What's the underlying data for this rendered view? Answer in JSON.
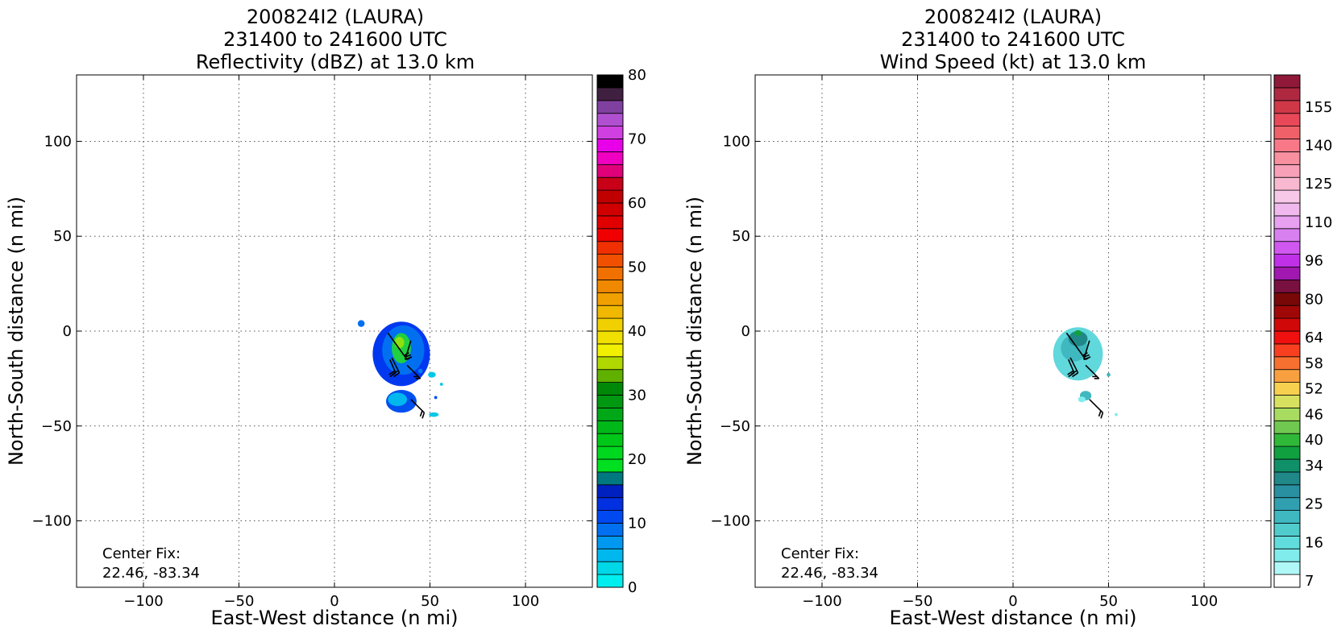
{
  "chart_data": [
    {
      "type": "heatmap",
      "title": [
        "200824I2 (LAURA)",
        "231400 to 241600 UTC",
        "Reflectivity (dBZ) at 13.0 km"
      ],
      "xlabel": "East-West distance (n mi)",
      "ylabel": "North-South distance (n mi)",
      "xlim": [
        -135,
        135
      ],
      "ylim": [
        -135,
        135
      ],
      "xticks": [
        -100,
        -50,
        0,
        50,
        100
      ],
      "yticks": [
        -100,
        -50,
        0,
        50,
        100
      ],
      "xtick_labels": [
        "−100",
        "−50",
        "0",
        "50",
        "100"
      ],
      "ytick_labels": [
        "−100",
        "−50",
        "0",
        "50",
        "100"
      ],
      "grid": true,
      "annotation": [
        "Center Fix:",
        "22.46, -83.34"
      ],
      "colorbar": {
        "min": 0,
        "max": 80,
        "ticks": [
          0,
          10,
          20,
          30,
          40,
          50,
          60,
          70,
          80
        ],
        "colors": [
          "#00eeee",
          "#00d8e8",
          "#00b8ee",
          "#0098f0",
          "#0070f0",
          "#0048f0",
          "#0030e0",
          "#0020c0",
          "#007880",
          "#00e020",
          "#00d820",
          "#00c818",
          "#00b818",
          "#00a818",
          "#009810",
          "#008808",
          "#60b000",
          "#b0d800",
          "#f0f000",
          "#f0e000",
          "#f0d000",
          "#f0b800",
          "#f0a000",
          "#f08800",
          "#f07000",
          "#f05000",
          "#f03000",
          "#f00000",
          "#e00000",
          "#d00000",
          "#c00000",
          "#c80018",
          "#e0007a",
          "#f000c0",
          "#e800e8",
          "#d040e0",
          "#b050d0",
          "#8040a0",
          "#402040",
          "#000000"
        ]
      },
      "features": [
        {
          "cx": 35,
          "cy": -12,
          "rx": 15,
          "ry": 17,
          "color": "#0038f0"
        },
        {
          "cx": 36,
          "cy": -10,
          "rx": 11,
          "ry": 13,
          "color": "#0070f0"
        },
        {
          "cx": 35,
          "cy": -9,
          "rx": 5,
          "ry": 8,
          "color": "#20d040"
        },
        {
          "cx": 34,
          "cy": -6,
          "rx": 2.5,
          "ry": 3,
          "color": "#90e010"
        },
        {
          "cx": 35,
          "cy": -37,
          "rx": 8,
          "ry": 6,
          "color": "#0050f0"
        },
        {
          "cx": 33,
          "cy": -36,
          "rx": 5,
          "ry": 3.5,
          "color": "#00b8ee"
        },
        {
          "cx": 14,
          "cy": 4,
          "rx": 1.8,
          "ry": 1.8,
          "color": "#0070f0"
        },
        {
          "cx": 52,
          "cy": -44,
          "rx": 2.5,
          "ry": 1.2,
          "color": "#00c8e8"
        },
        {
          "cx": 51,
          "cy": -23,
          "rx": 2,
          "ry": 1.5,
          "color": "#00c8e8"
        },
        {
          "cx": 56,
          "cy": -28,
          "rx": 0.8,
          "ry": 0.8,
          "color": "#00c8e8"
        },
        {
          "cx": 45,
          "cy": -21,
          "rx": 1.2,
          "ry": 1.2,
          "color": "#0080f0"
        },
        {
          "cx": 53,
          "cy": -35,
          "rx": 0.8,
          "ry": 0.8,
          "color": "#0050f0"
        }
      ],
      "barbs": [
        {
          "x0": 28,
          "y0": -1,
          "x1": 38,
          "y1": -15,
          "dx": 2.5,
          "dy": 1.5
        },
        {
          "x0": 40,
          "y0": -5,
          "x1": 37,
          "y1": -15,
          "dx": 2.5,
          "dy": 1
        },
        {
          "x0": 38,
          "y0": -18,
          "x1": 45,
          "y1": -25,
          "dx": -2.5,
          "dy": 0
        },
        {
          "x0": 30,
          "y0": -14,
          "x1": 34,
          "y1": -22,
          "dx": -3,
          "dy": -2
        },
        {
          "x0": 29,
          "y0": -15,
          "x1": 32,
          "y1": -22,
          "dx": -3,
          "dy": -2
        },
        {
          "x0": 40,
          "y0": -36,
          "x1": 47,
          "y1": -43,
          "dx": -1,
          "dy": -3
        }
      ]
    },
    {
      "type": "heatmap",
      "title": [
        "200824I2 (LAURA)",
        "231400 to 241600 UTC",
        "Wind Speed (kt) at 13.0 km"
      ],
      "xlabel": "East-West distance (n mi)",
      "ylabel": "North-South distance (n mi)",
      "xlim": [
        -135,
        135
      ],
      "ylim": [
        -135,
        135
      ],
      "xticks": [
        -100,
        -50,
        0,
        50,
        100
      ],
      "yticks": [
        -100,
        -50,
        0,
        50,
        100
      ],
      "xtick_labels": [
        "−100",
        "−50",
        "0",
        "50",
        "100"
      ],
      "ytick_labels": [
        "−100",
        "−50",
        "0",
        "50",
        "100"
      ],
      "grid": true,
      "annotation": [
        "Center Fix:",
        "22.46, -83.34"
      ],
      "colorbar": {
        "tick_labels": [
          "7",
          "16",
          "25",
          "34",
          "40",
          "46",
          "52",
          "58",
          "64",
          "80",
          "96",
          "110",
          "125",
          "140",
          "155"
        ],
        "tick_bins": [
          0,
          3,
          6,
          9,
          11,
          13,
          15,
          17,
          19,
          22,
          25,
          28,
          31,
          34,
          37
        ],
        "colors": [
          "#ffffff",
          "#b0f8f8",
          "#80ecec",
          "#60dcdc",
          "#50cccc",
          "#40b8c0",
          "#30a0b0",
          "#2890a0",
          "#208888",
          "#109068",
          "#10a040",
          "#30b838",
          "#70c850",
          "#a8dc60",
          "#d8e060",
          "#f8d050",
          "#f8a040",
          "#f87030",
          "#f84020",
          "#f01010",
          "#d00808",
          "#a00808",
          "#780808",
          "#781040",
          "#a018b0",
          "#c030e8",
          "#d058f0",
          "#d880f0",
          "#e8a0f0",
          "#f0b8ec",
          "#f8c8e8",
          "#f8b8d0",
          "#f8a0b8",
          "#f890a0",
          "#f87888",
          "#f06068",
          "#e84858",
          "#d03848",
          "#b02840",
          "#901838"
        ]
      },
      "features": [
        {
          "cx": 34,
          "cy": -12,
          "rx": 13,
          "ry": 14,
          "color": "#60d8dc"
        },
        {
          "cx": 32,
          "cy": -9,
          "rx": 7,
          "ry": 7,
          "color": "#40b8c0"
        },
        {
          "cx": 34,
          "cy": -4,
          "rx": 5,
          "ry": 4,
          "color": "#208888"
        },
        {
          "cx": 34,
          "cy": -1,
          "rx": 2,
          "ry": 1.5,
          "color": "#10a040"
        },
        {
          "cx": 38,
          "cy": -34,
          "rx": 3,
          "ry": 2.5,
          "color": "#40b8c0"
        },
        {
          "cx": 36,
          "cy": -36,
          "rx": 2,
          "ry": 1.5,
          "color": "#80ecec"
        },
        {
          "cx": 50,
          "cy": -23,
          "rx": 1,
          "ry": 1,
          "color": "#40b8c0"
        },
        {
          "cx": 54,
          "cy": -44,
          "rx": 0.8,
          "ry": 0.8,
          "color": "#80ecec"
        }
      ],
      "barbs": [
        {
          "x0": 28,
          "y0": -1,
          "x1": 38,
          "y1": -15,
          "dx": 2.5,
          "dy": 1.5
        },
        {
          "x0": 40,
          "y0": -5,
          "x1": 37,
          "y1": -15,
          "dx": 2.5,
          "dy": 1
        },
        {
          "x0": 38,
          "y0": -18,
          "x1": 45,
          "y1": -25,
          "dx": -2.5,
          "dy": 0
        },
        {
          "x0": 30,
          "y0": -14,
          "x1": 34,
          "y1": -22,
          "dx": -3,
          "dy": -2
        },
        {
          "x0": 29,
          "y0": -15,
          "x1": 32,
          "y1": -22,
          "dx": -3,
          "dy": -2
        },
        {
          "x0": 40,
          "y0": -36,
          "x1": 47,
          "y1": -43,
          "dx": -1,
          "dy": -3
        }
      ]
    }
  ]
}
